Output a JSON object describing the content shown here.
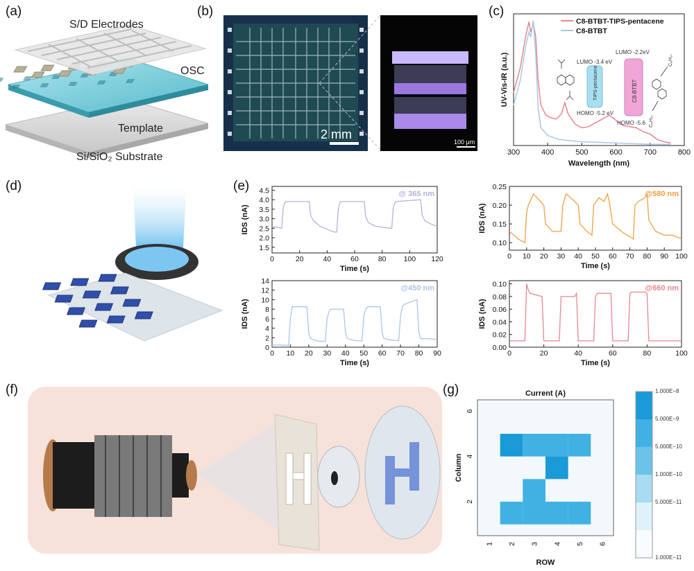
{
  "panel_labels": {
    "a": "(a)",
    "b": "(b)",
    "c": "(c)",
    "d": "(d)",
    "e": "(e)",
    "f": "(f)",
    "g": "(g)"
  },
  "panel_a": {
    "layer_labels": [
      "S/D Electrodes",
      "OSC",
      "Template",
      "Si/SiO₂ Substrate"
    ]
  },
  "panel_b": {
    "scale_bar_main": "2 mm",
    "scale_bar_inset": "100 μm"
  },
  "panel_c": {
    "energy_levels": {
      "tips_lumo": "LUMO -3.4 eV",
      "tips_homo": "HOMO -5.2 eV",
      "tips_name": "TIPS-pentacene",
      "c8_lumo": "LUMO -2.2eV",
      "c8_homo": "HOMO -5.6",
      "c8_name": "C8-BTBT",
      "mol_sub_top": "C₈H₁₇",
      "mol_sub_bottom": "C₈H₁₇"
    }
  },
  "panel_g_colorbar": [
    "1.000E−8",
    "5.000E−9",
    "5.000E−10",
    "1.000E−10",
    "5.000E−11",
    "1.000E−11"
  ],
  "chart_data": [
    {
      "id": "c",
      "type": "line",
      "xlabel": "Wavelength (nm)",
      "ylabel": "UV-Vis-IR (a.u.)",
      "xlim": [
        300,
        800
      ],
      "xticks": [
        300,
        400,
        500,
        600,
        700,
        800
      ],
      "series": [
        {
          "name": "C8-BTBT-TIPS-pentacene",
          "color": "#e8868f",
          "x": [
            300,
            320,
            335,
            345,
            350,
            358,
            365,
            372,
            380,
            395,
            410,
            425,
            440,
            450,
            460,
            480,
            500,
            520,
            540,
            560,
            580,
            600,
            620,
            640,
            660,
            680,
            700,
            720,
            740,
            760
          ],
          "y": [
            0.42,
            0.62,
            0.86,
            0.98,
            0.9,
            0.97,
            0.86,
            0.52,
            0.32,
            0.24,
            0.22,
            0.21,
            0.25,
            0.34,
            0.25,
            0.17,
            0.14,
            0.15,
            0.18,
            0.21,
            0.24,
            0.2,
            0.16,
            0.15,
            0.14,
            0.11,
            0.09,
            0.05,
            0.03,
            0.02
          ]
        },
        {
          "name": "C8-BTBT",
          "color": "#a9c6e8",
          "x": [
            300,
            320,
            335,
            345,
            350,
            358,
            365,
            372,
            380,
            400,
            430,
            460,
            500,
            600,
            700,
            760
          ],
          "y": [
            0.32,
            0.52,
            0.78,
            0.9,
            0.86,
            0.99,
            0.72,
            0.3,
            0.14,
            0.08,
            0.05,
            0.04,
            0.03,
            0.02,
            0.01,
            0.01
          ]
        }
      ]
    },
    {
      "id": "e1",
      "type": "line",
      "xlabel": "Time (s)",
      "ylabel": "IDS (nA)",
      "annotation": "@ 365 nm",
      "color": "#b3b3da",
      "xlim": [
        0,
        120
      ],
      "ylim": [
        1.2,
        4.7
      ],
      "xticks": [
        0,
        20,
        40,
        60,
        80,
        100,
        120
      ],
      "yticks": [
        1.5,
        2.0,
        2.5,
        3.0,
        3.5,
        4.0,
        4.5
      ],
      "x": [
        0,
        7,
        8,
        9,
        10,
        27,
        28,
        30,
        35,
        45,
        47,
        48,
        49,
        50,
        67,
        68,
        70,
        75,
        86,
        87,
        88,
        89,
        90,
        108,
        109,
        111,
        116,
        120
      ],
      "y": [
        2.6,
        2.5,
        3.5,
        3.8,
        3.9,
        3.9,
        3.2,
        2.9,
        2.6,
        2.3,
        2.3,
        3.4,
        3.8,
        3.9,
        3.9,
        3.1,
        2.8,
        2.6,
        2.5,
        2.5,
        3.5,
        3.8,
        3.9,
        4.0,
        3.2,
        2.9,
        2.7,
        2.6
      ]
    },
    {
      "id": "e2",
      "type": "line",
      "xlabel": "Time (s)",
      "ylabel": "IDS (nA)",
      "annotation": "@580 nm",
      "color": "#f0a040",
      "xlim": [
        0,
        100
      ],
      "ylim": [
        0.08,
        0.25
      ],
      "xticks": [
        0,
        10,
        20,
        30,
        40,
        50,
        60,
        70,
        80,
        90,
        100
      ],
      "yticks": [
        0.1,
        0.15,
        0.2,
        0.25
      ],
      "x": [
        0,
        5,
        9,
        10,
        11,
        14,
        18,
        20,
        21,
        25,
        30,
        31,
        33,
        38,
        40,
        41,
        45,
        48,
        49,
        52,
        55,
        57,
        58,
        60,
        65,
        72,
        73,
        75,
        79,
        80,
        81,
        85,
        90,
        95,
        100
      ],
      "y": [
        0.13,
        0.11,
        0.1,
        0.18,
        0.2,
        0.23,
        0.21,
        0.2,
        0.15,
        0.13,
        0.13,
        0.2,
        0.23,
        0.21,
        0.2,
        0.15,
        0.13,
        0.12,
        0.2,
        0.22,
        0.21,
        0.23,
        0.21,
        0.15,
        0.13,
        0.11,
        0.2,
        0.21,
        0.22,
        0.23,
        0.16,
        0.13,
        0.12,
        0.12,
        0.11
      ]
    },
    {
      "id": "e3",
      "type": "line",
      "xlabel": "Time (s)",
      "ylabel": "IDS (nA)",
      "annotation": "@450 nm",
      "color": "#a9c6e8",
      "xlim": [
        0,
        90
      ],
      "ylim": [
        0,
        14
      ],
      "xticks": [
        0,
        10,
        20,
        30,
        40,
        50,
        60,
        70,
        80,
        90
      ],
      "yticks": [
        0,
        2,
        4,
        6,
        8,
        10,
        12,
        14
      ],
      "x": [
        0,
        8,
        9,
        10,
        11,
        12,
        19,
        20,
        21,
        25,
        29,
        30,
        31,
        32,
        39,
        40,
        41,
        45,
        49,
        50,
        51,
        52,
        59,
        60,
        61,
        65,
        69,
        70,
        71,
        72,
        79,
        80,
        81,
        85,
        90
      ],
      "y": [
        0.5,
        0.4,
        0.4,
        6.0,
        8.5,
        8.5,
        8.5,
        3.0,
        1.8,
        1.3,
        1.2,
        6.0,
        7.5,
        8.0,
        8.0,
        3.0,
        1.8,
        1.4,
        1.3,
        6.5,
        8.0,
        8.5,
        8.5,
        3.0,
        1.8,
        1.5,
        1.4,
        6.5,
        8.5,
        9.0,
        10.0,
        3.0,
        1.8,
        1.8,
        1.6
      ]
    },
    {
      "id": "e4",
      "type": "line",
      "xlabel": "Time (s)",
      "ylabel": "IDS (nA)",
      "annotation": "@660 nm",
      "color": "#e8868f",
      "xlim": [
        0,
        100
      ],
      "ylim": [
        0,
        0.105
      ],
      "xticks": [
        0,
        20,
        40,
        60,
        80,
        100
      ],
      "yticks": [
        0.0,
        0.02,
        0.04,
        0.06,
        0.08,
        0.1
      ],
      "x": [
        0,
        9,
        10,
        11,
        12,
        19,
        20,
        29,
        30,
        31,
        38,
        39,
        40,
        49,
        50,
        51,
        58,
        59,
        60,
        69,
        70,
        71,
        79,
        80,
        81,
        100
      ],
      "y": [
        0.01,
        0.01,
        0.1,
        0.09,
        0.085,
        0.08,
        0.01,
        0.01,
        0.08,
        0.08,
        0.08,
        0.085,
        0.01,
        0.01,
        0.08,
        0.085,
        0.085,
        0.085,
        0.01,
        0.01,
        0.085,
        0.087,
        0.087,
        0.085,
        0.01,
        0.01
      ]
    },
    {
      "id": "g",
      "type": "heatmap",
      "title": "Current (A)",
      "xlabel": "ROW",
      "ylabel": "Column",
      "xticks": [
        1,
        2,
        3,
        4,
        5,
        6
      ],
      "yticks": [
        2,
        4,
        6
      ],
      "cells": [
        {
          "row": 2,
          "col": 5,
          "level": "high"
        },
        {
          "row": 3,
          "col": 5,
          "level": "mid"
        },
        {
          "row": 4,
          "col": 5,
          "level": "mid"
        },
        {
          "row": 5,
          "col": 5,
          "level": "mid"
        },
        {
          "row": 4,
          "col": 4,
          "level": "high"
        },
        {
          "row": 3,
          "col": 3,
          "level": "mid"
        },
        {
          "row": 2,
          "col": 2,
          "level": "mid"
        },
        {
          "row": 3,
          "col": 2,
          "level": "mid"
        },
        {
          "row": 4,
          "col": 2,
          "level": "mid"
        },
        {
          "row": 5,
          "col": 2,
          "level": "mid"
        }
      ],
      "colors": {
        "high": "#1a9ad6",
        "mid": "#41b1e3",
        "background": "#f2f8fb"
      }
    }
  ]
}
